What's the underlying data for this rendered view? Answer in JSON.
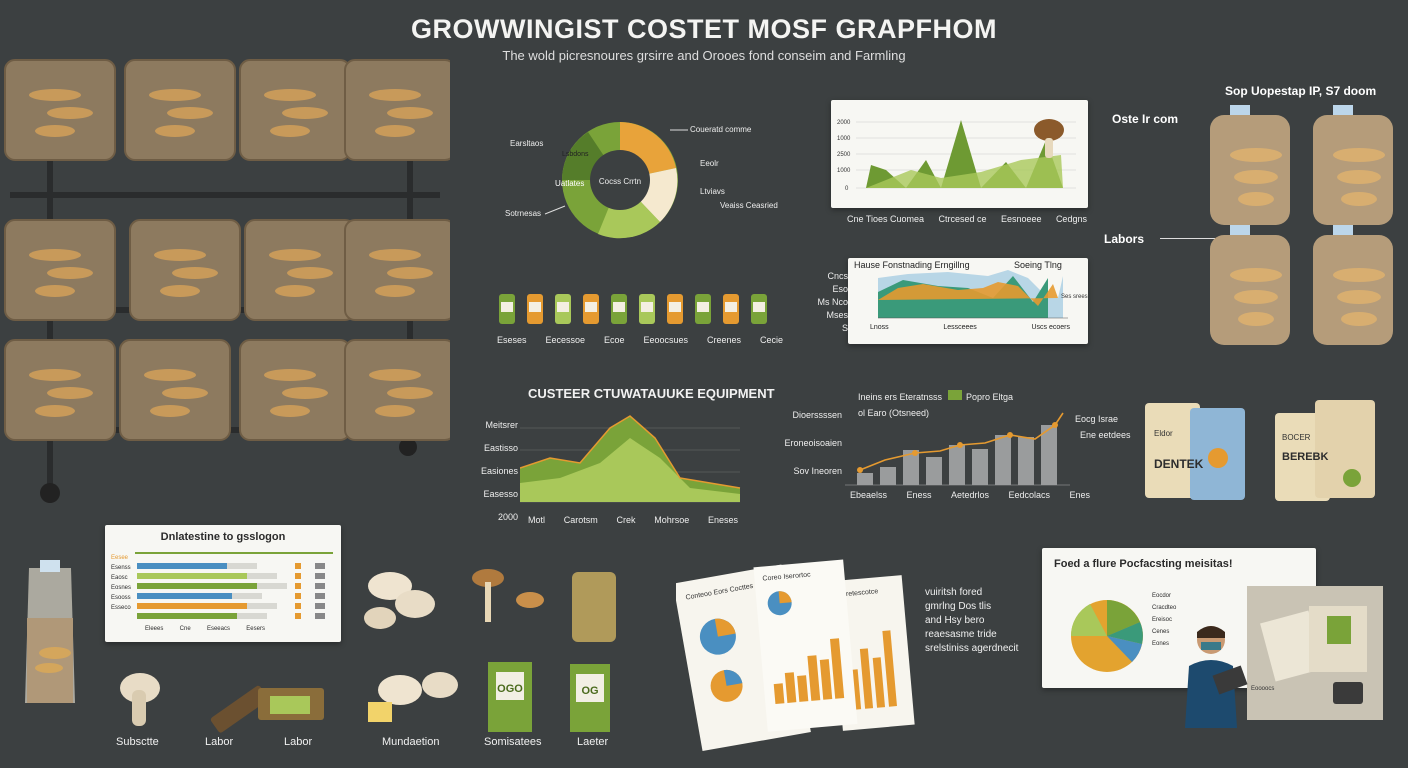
{
  "header": {
    "title": "GROWWINGIST COSTET MOSF GRAPFHOM",
    "subtitle": "The wold picresnoures grsirre and Orooes fond conseim and Farmling"
  },
  "donut": {
    "center": "Cocss Crrtn",
    "labels": [
      "Earsltaos",
      "Lsbdons",
      "Uatlates",
      "Sotrnesas",
      "Coueratd comme",
      "Eeolr",
      "Ltviavs",
      "Veaiss Ceasried"
    ]
  },
  "jars": {
    "labels": [
      "Eseses",
      "Eecessoe",
      "Ecoe",
      "Eeoocsues",
      "Creenes",
      "Cecie"
    ]
  },
  "mushroom_chart": {
    "ticks": [
      "2000",
      "1000",
      "2500",
      "1000",
      "0"
    ],
    "x_labels": [
      "Cne Tioes Cuomea",
      "Ctrcesed ce",
      "Eesnoeee",
      "Cedgns"
    ]
  },
  "area_chart": {
    "title_left": "Hause Fonstnading Erngillng",
    "title_right": "Soeing Tlng",
    "y_labels": [
      "Cncs",
      "Eso",
      "Ms Nco",
      "Mses",
      "S"
    ],
    "legend": "Ses srees",
    "x_labels": [
      "Lnoss",
      "Lessceees",
      "Uscs ecoers"
    ]
  },
  "equipment_chart": {
    "title": "CUSTEER CTUWATAUUKE EQUIPMENT",
    "y_labels": [
      "Meitsrer",
      "Eastisso",
      "Easiones",
      "Easesso",
      "2000"
    ],
    "x_labels": [
      "Motl",
      "Carotsm",
      "Crek",
      "Mohrsoe",
      "Eneses"
    ]
  },
  "combo_chart": {
    "legend_a": "Ineins ers Eteratnsss",
    "legend_b": "Popro Eltga",
    "legend_c": "ol Earo (Otsneed)",
    "y_labels": [
      "Dioerssssen",
      "Eroneoisoaien",
      "Sov Ineoren"
    ],
    "side_labels": [
      "Eocg Israe",
      "Ene eetdees"
    ],
    "x_labels": [
      "Ebeaelss",
      "Eness",
      "Aetedrlos",
      "Eedcolacs",
      "Enes"
    ]
  },
  "right_bags": {
    "top_label": "Sop Uopestap  IP, S7 doom",
    "mid_label": "Oste Ir com",
    "labor_label": "Labors"
  },
  "packs": {
    "left_brand": "DENTEK",
    "right_brand": "BEREBK",
    "left_top": "Eldor",
    "right_top": "BOCER"
  },
  "table_panel": {
    "title": "Dnlatestine to gsslogon",
    "rows": [
      "Eesee",
      "Esenss",
      "Eaosc",
      "Eosnes",
      "Esooss",
      "Esseco"
    ],
    "bottom": [
      "Eleees",
      "Cne",
      "Eseeacs",
      "Eesers"
    ]
  },
  "bottom_labels": {
    "substrate": "Subsctte",
    "labor1": "Labor",
    "labor2": "Labor",
    "manufacturing": "Mundaetion",
    "sanitation": "Somisatees",
    "leafer": "Laeter"
  },
  "bags_text": {
    "left": "OGO",
    "right": "OG"
  },
  "reports": {
    "a": "Conteoo Eors Cocttes",
    "b": "Coreo Iserortoc",
    "c": "Coretescotce"
  },
  "notes": [
    "vuiritsh fored",
    "gmrlng Dos tlis",
    "and Hsy bero",
    "reaesasme tride",
    "srelstiniss agerdnecit"
  ],
  "pack_panel": {
    "title": "Foed a flure Pocfacsting meisitas!",
    "labels": [
      "Eocdor",
      "Cracdteo",
      "Ereisoc",
      "Cenes",
      "Eones"
    ],
    "caption": "Eoooocs"
  },
  "colors": {
    "bg": "#3c4041",
    "green": "#7aa339",
    "orange": "#e59a30",
    "light_green": "#a9c85a",
    "blue": "#4a8fc1"
  }
}
